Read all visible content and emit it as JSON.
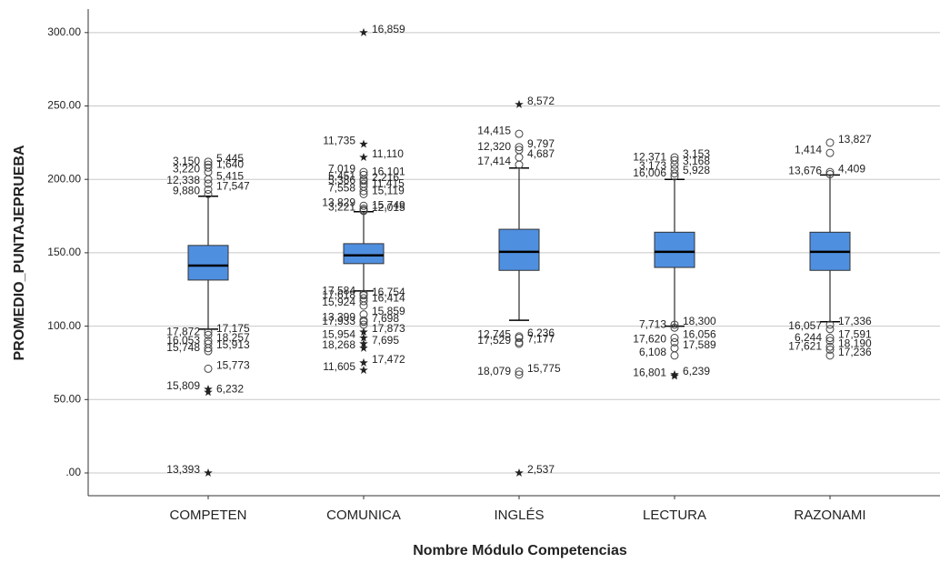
{
  "chart_data": {
    "type": "boxplot",
    "x_label": "Nombre Módulo Competencias",
    "y_label": "PROMEDIO_PUNTAJEPRUEBA",
    "categories": [
      "COMPETEN",
      "COMUNICA",
      "INGLÉS",
      "LECTURA",
      "RAZONAMI"
    ],
    "color": "#4f8fe0",
    "grid": true,
    "ylim": [
      -15.5,
      316
    ],
    "yticks": [
      {
        "value": 0,
        "label": ".00"
      },
      {
        "value": 50,
        "label": "50.00"
      },
      {
        "value": 100,
        "label": "100.00"
      },
      {
        "value": 150,
        "label": "150.00"
      },
      {
        "value": 200,
        "label": "200.00"
      },
      {
        "value": 250,
        "label": "250.00"
      },
      {
        "value": 300,
        "label": "300.00"
      }
    ],
    "boxes": [
      {
        "whisker_low": 98,
        "q1": 131.4,
        "median": 141.3,
        "q3": 155,
        "whisker_high": 188.5,
        "outliers": [
          {
            "value": 212,
            "label": "5,445",
            "marker": "circle"
          },
          {
            "value": 210,
            "label": "3,150",
            "marker": "circle"
          },
          {
            "value": 208,
            "label": "1,640",
            "marker": "circle"
          },
          {
            "value": 205,
            "label": "3,220",
            "marker": "circle"
          },
          {
            "value": 200,
            "label": "5,415",
            "marker": "circle"
          },
          {
            "value": 197,
            "label": "12,338",
            "marker": "circle"
          },
          {
            "value": 193,
            "label": "17,547",
            "marker": "circle"
          },
          {
            "value": 190,
            "label": "9,880",
            "marker": "circle"
          },
          {
            "value": 96,
            "label": "17,175",
            "marker": "circle"
          },
          {
            "value": 94,
            "label": "17,872",
            "marker": "circle"
          },
          {
            "value": 90,
            "label": "18,257",
            "marker": "circle"
          },
          {
            "value": 88,
            "label": "16,053",
            "marker": "circle"
          },
          {
            "value": 85,
            "label": "15,913",
            "marker": "circle"
          },
          {
            "value": 83,
            "label": "15,748",
            "marker": "circle"
          },
          {
            "value": 71,
            "label": "15,773",
            "marker": "circle"
          },
          {
            "value": 57,
            "label": "15,809",
            "marker": "star"
          },
          {
            "value": 55,
            "label": "6,232",
            "marker": "star"
          },
          {
            "value": 0,
            "label": "13,393",
            "marker": "star"
          }
        ]
      },
      {
        "whisker_low": 124,
        "q1": 142.6,
        "median": 148.2,
        "q3": 156.2,
        "whisker_high": 178,
        "outliers": [
          {
            "value": 300,
            "label": "16,859",
            "marker": "star"
          },
          {
            "value": 224,
            "label": "11,735",
            "marker": "star"
          },
          {
            "value": 215,
            "label": "11,110",
            "marker": "star"
          },
          {
            "value": 205,
            "label": "7,019",
            "marker": "circle"
          },
          {
            "value": 203,
            "label": "16,101",
            "marker": "circle"
          },
          {
            "value": 200,
            "label": "5,451",
            "marker": "circle"
          },
          {
            "value": 199,
            "label": "2,216",
            "marker": "circle"
          },
          {
            "value": 197,
            "label": "5,386",
            "marker": "circle"
          },
          {
            "value": 195,
            "label": "11,415",
            "marker": "circle"
          },
          {
            "value": 192,
            "label": "7,558",
            "marker": "circle"
          },
          {
            "value": 190,
            "label": "15,119",
            "marker": "circle"
          },
          {
            "value": 182,
            "label": "13,829",
            "marker": "circle"
          },
          {
            "value": 180,
            "label": "15,749",
            "marker": "circle"
          },
          {
            "value": 179,
            "label": "3,221",
            "marker": "circle"
          },
          {
            "value": 178.5,
            "label": "12,015",
            "marker": "circle"
          },
          {
            "value": 122,
            "label": "17,584",
            "marker": "circle"
          },
          {
            "value": 121,
            "label": "16,754",
            "marker": "circle"
          },
          {
            "value": 119,
            "label": "17,618",
            "marker": "circle"
          },
          {
            "value": 117,
            "label": "16,414",
            "marker": "circle"
          },
          {
            "value": 114,
            "label": "15,924",
            "marker": "circle"
          },
          {
            "value": 108,
            "label": "15,859",
            "marker": "circle"
          },
          {
            "value": 104,
            "label": "13,399",
            "marker": "circle"
          },
          {
            "value": 103,
            "label": "7,698",
            "marker": "circle"
          },
          {
            "value": 101,
            "label": "17,933",
            "marker": "circle"
          },
          {
            "value": 96,
            "label": "17,873",
            "marker": "star"
          },
          {
            "value": 92,
            "label": "15,954",
            "marker": "star"
          },
          {
            "value": 88,
            "label": "7,695",
            "marker": "star"
          },
          {
            "value": 85,
            "label": "18,268",
            "marker": "star"
          },
          {
            "value": 75,
            "label": "17,472",
            "marker": "star"
          },
          {
            "value": 70,
            "label": "11,605",
            "marker": "star"
          }
        ]
      },
      {
        "whisker_low": 104,
        "q1": 138,
        "median": 150.6,
        "q3": 166,
        "whisker_high": 207.7,
        "outliers": [
          {
            "value": 251,
            "label": "8,572",
            "marker": "star"
          },
          {
            "value": 231,
            "label": "14,415",
            "marker": "circle"
          },
          {
            "value": 222,
            "label": "9,797",
            "marker": "circle"
          },
          {
            "value": 220,
            "label": "12,320",
            "marker": "circle"
          },
          {
            "value": 215,
            "label": "4,687",
            "marker": "circle"
          },
          {
            "value": 210,
            "label": "17,414",
            "marker": "circle"
          },
          {
            "value": 93,
            "label": "6,236",
            "marker": "circle"
          },
          {
            "value": 92,
            "label": "12,745",
            "marker": "circle"
          },
          {
            "value": 89,
            "label": "7,177",
            "marker": "circle"
          },
          {
            "value": 88,
            "label": "17,529",
            "marker": "circle"
          },
          {
            "value": 69,
            "label": "15,775",
            "marker": "circle"
          },
          {
            "value": 67,
            "label": "18,079",
            "marker": "circle"
          },
          {
            "value": 0,
            "label": "2,537",
            "marker": "star"
          }
        ]
      },
      {
        "whisker_low": 100,
        "q1": 140,
        "median": 150.6,
        "q3": 164,
        "whisker_high": 200,
        "outliers": [
          {
            "value": 215,
            "label": "3,153",
            "marker": "circle"
          },
          {
            "value": 213,
            "label": "12,371",
            "marker": "circle"
          },
          {
            "value": 210,
            "label": "3,168",
            "marker": "circle"
          },
          {
            "value": 207,
            "label": "3,173",
            "marker": "circle"
          },
          {
            "value": 204,
            "label": "5,928",
            "marker": "circle"
          },
          {
            "value": 202,
            "label": "16,006",
            "marker": "circle"
          },
          {
            "value": 101,
            "label": "18,300",
            "marker": "circle"
          },
          {
            "value": 99,
            "label": "7,713",
            "marker": "circle"
          },
          {
            "value": 92,
            "label": "16,056",
            "marker": "circle"
          },
          {
            "value": 89,
            "label": "17,620",
            "marker": "circle"
          },
          {
            "value": 85,
            "label": "17,589",
            "marker": "circle"
          },
          {
            "value": 80,
            "label": "6,108",
            "marker": "circle"
          },
          {
            "value": 67,
            "label": "6,239",
            "marker": "star"
          },
          {
            "value": 66,
            "label": "16,801",
            "marker": "star"
          }
        ]
      },
      {
        "whisker_low": 103,
        "q1": 138,
        "median": 150.6,
        "q3": 164,
        "whisker_high": 203,
        "outliers": [
          {
            "value": 225,
            "label": "13,827",
            "marker": "circle"
          },
          {
            "value": 218,
            "label": "1,414",
            "marker": "circle"
          },
          {
            "value": 205,
            "label": "4,409",
            "marker": "circle"
          },
          {
            "value": 203.5,
            "label": "13,676",
            "marker": "circle"
          },
          {
            "value": 101,
            "label": "17,336",
            "marker": "circle"
          },
          {
            "value": 98,
            "label": "16,057",
            "marker": "circle"
          },
          {
            "value": 92,
            "label": "17,591",
            "marker": "circle"
          },
          {
            "value": 90,
            "label": "6,244",
            "marker": "circle"
          },
          {
            "value": 86,
            "label": "18,190",
            "marker": "circle"
          },
          {
            "value": 84,
            "label": "17,621",
            "marker": "circle"
          },
          {
            "value": 80,
            "label": "17,236",
            "marker": "circle"
          }
        ]
      }
    ]
  }
}
